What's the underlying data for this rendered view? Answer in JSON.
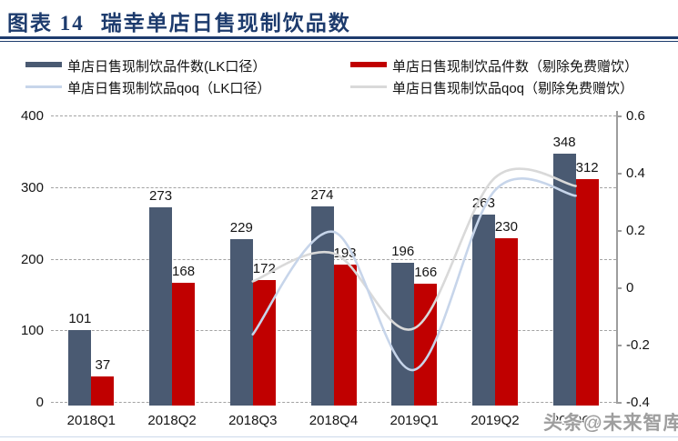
{
  "header": {
    "figure_label": "图表 14",
    "title": "瑞幸单店日售现制饮品数"
  },
  "watermark": "头条@未来智库",
  "legend": [
    {
      "label": "单店日售现制饮品件数(LK口径）",
      "type": "bar",
      "color": "#4a5a72"
    },
    {
      "label": "单店日售现制饮品件数（剔除免费赠饮）",
      "type": "bar",
      "color": "#c00000"
    },
    {
      "label": "单店日售现制饮品qoq（LK口径）",
      "type": "line",
      "color": "#c7d5ea"
    },
    {
      "label": "单店日售现制饮品qoq（剔除免费赠饮）",
      "type": "line",
      "color": "#d9d9d9"
    }
  ],
  "chart_data": {
    "type": "bar",
    "subtype": "combo bar+smooth-line, dual axis",
    "title": "瑞幸单店日售现制饮品数",
    "categories": [
      "2018Q1",
      "2018Q2",
      "2018Q3",
      "2018Q4",
      "2019Q1",
      "2019Q2",
      "2019Q3"
    ],
    "series": [
      {
        "name": "单店日售现制饮品件数(LK口径）",
        "type": "bar",
        "axis": "left",
        "color": "#4a5a72",
        "values": [
          101,
          273,
          229,
          274,
          196,
          263,
          348
        ]
      },
      {
        "name": "单店日售现制饮品件数（剔除免费赠饮）",
        "type": "bar",
        "axis": "left",
        "color": "#c00000",
        "values": [
          37,
          168,
          172,
          193,
          166,
          230,
          312
        ]
      },
      {
        "name": "单店日售现制饮品qoq（LK口径）",
        "type": "line",
        "axis": "right",
        "color": "#c7d5ea",
        "values": [
          null,
          null,
          -0.161,
          0.197,
          -0.285,
          0.342,
          0.323
        ]
      },
      {
        "name": "单店日售现制饮品qoq（剔除免费赠饮）",
        "type": "line",
        "axis": "right",
        "color": "#d9d9d9",
        "values": [
          null,
          null,
          0.024,
          0.122,
          -0.14,
          0.386,
          0.357
        ]
      }
    ],
    "left_axis": {
      "min": 0,
      "max": 400,
      "step": 100,
      "ticks": [
        "0",
        "100",
        "200",
        "300",
        "400"
      ]
    },
    "right_axis": {
      "min": -0.4,
      "max": 0.6,
      "step": 0.2,
      "ticks": [
        "-0.4",
        "-0.2",
        "0",
        "0.2",
        "0.4",
        "0.6"
      ]
    },
    "grid": "horizontal dashed",
    "legend_position": "top",
    "bar_value_labels": true
  },
  "colors": {
    "title_navy": "#1d3b6d",
    "bar_dark": "#4a5a72",
    "bar_red": "#c00000",
    "line_blue": "#c7d5ea",
    "line_gray": "#d9d9d9",
    "gridline": "#a3a3a3",
    "axis_line": "#9d9d9d",
    "watermark_gray": "#9e9e9e"
  }
}
